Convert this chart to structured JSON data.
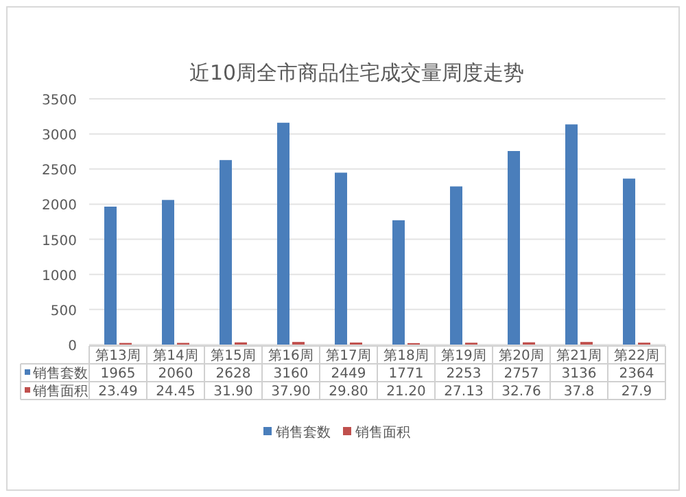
{
  "chart_data": {
    "type": "bar",
    "title": "近10周全市商品住宅成交量周度走势",
    "categories": [
      "第13周",
      "第14周",
      "第15周",
      "第16周",
      "第17周",
      "第18周",
      "第19周",
      "第20周",
      "第21周",
      "第22周"
    ],
    "series": [
      {
        "name": "销售套数",
        "color": "#4a7ebb",
        "values": [
          1965,
          2060,
          2628,
          3160,
          2449,
          1771,
          2253,
          2757,
          3136,
          2364
        ],
        "value_labels": [
          "1965",
          "2060",
          "2628",
          "3160",
          "2449",
          "1771",
          "2253",
          "2757",
          "3136",
          "2364"
        ]
      },
      {
        "name": "销售面积",
        "color": "#c0504d",
        "values": [
          23.49,
          24.45,
          31.9,
          37.9,
          29.8,
          21.2,
          27.13,
          32.76,
          37.8,
          27.9
        ],
        "value_labels": [
          "23.49",
          "24.45",
          "31.90",
          "37.90",
          "29.80",
          "21.20",
          "27.13",
          "32.76",
          "37.8",
          "27.9"
        ]
      }
    ],
    "ylim": [
      0,
      3500
    ],
    "yticks": [
      0,
      500,
      1000,
      1500,
      2000,
      2500,
      3000,
      3500
    ],
    "grid": "y",
    "legend": "bottom"
  }
}
